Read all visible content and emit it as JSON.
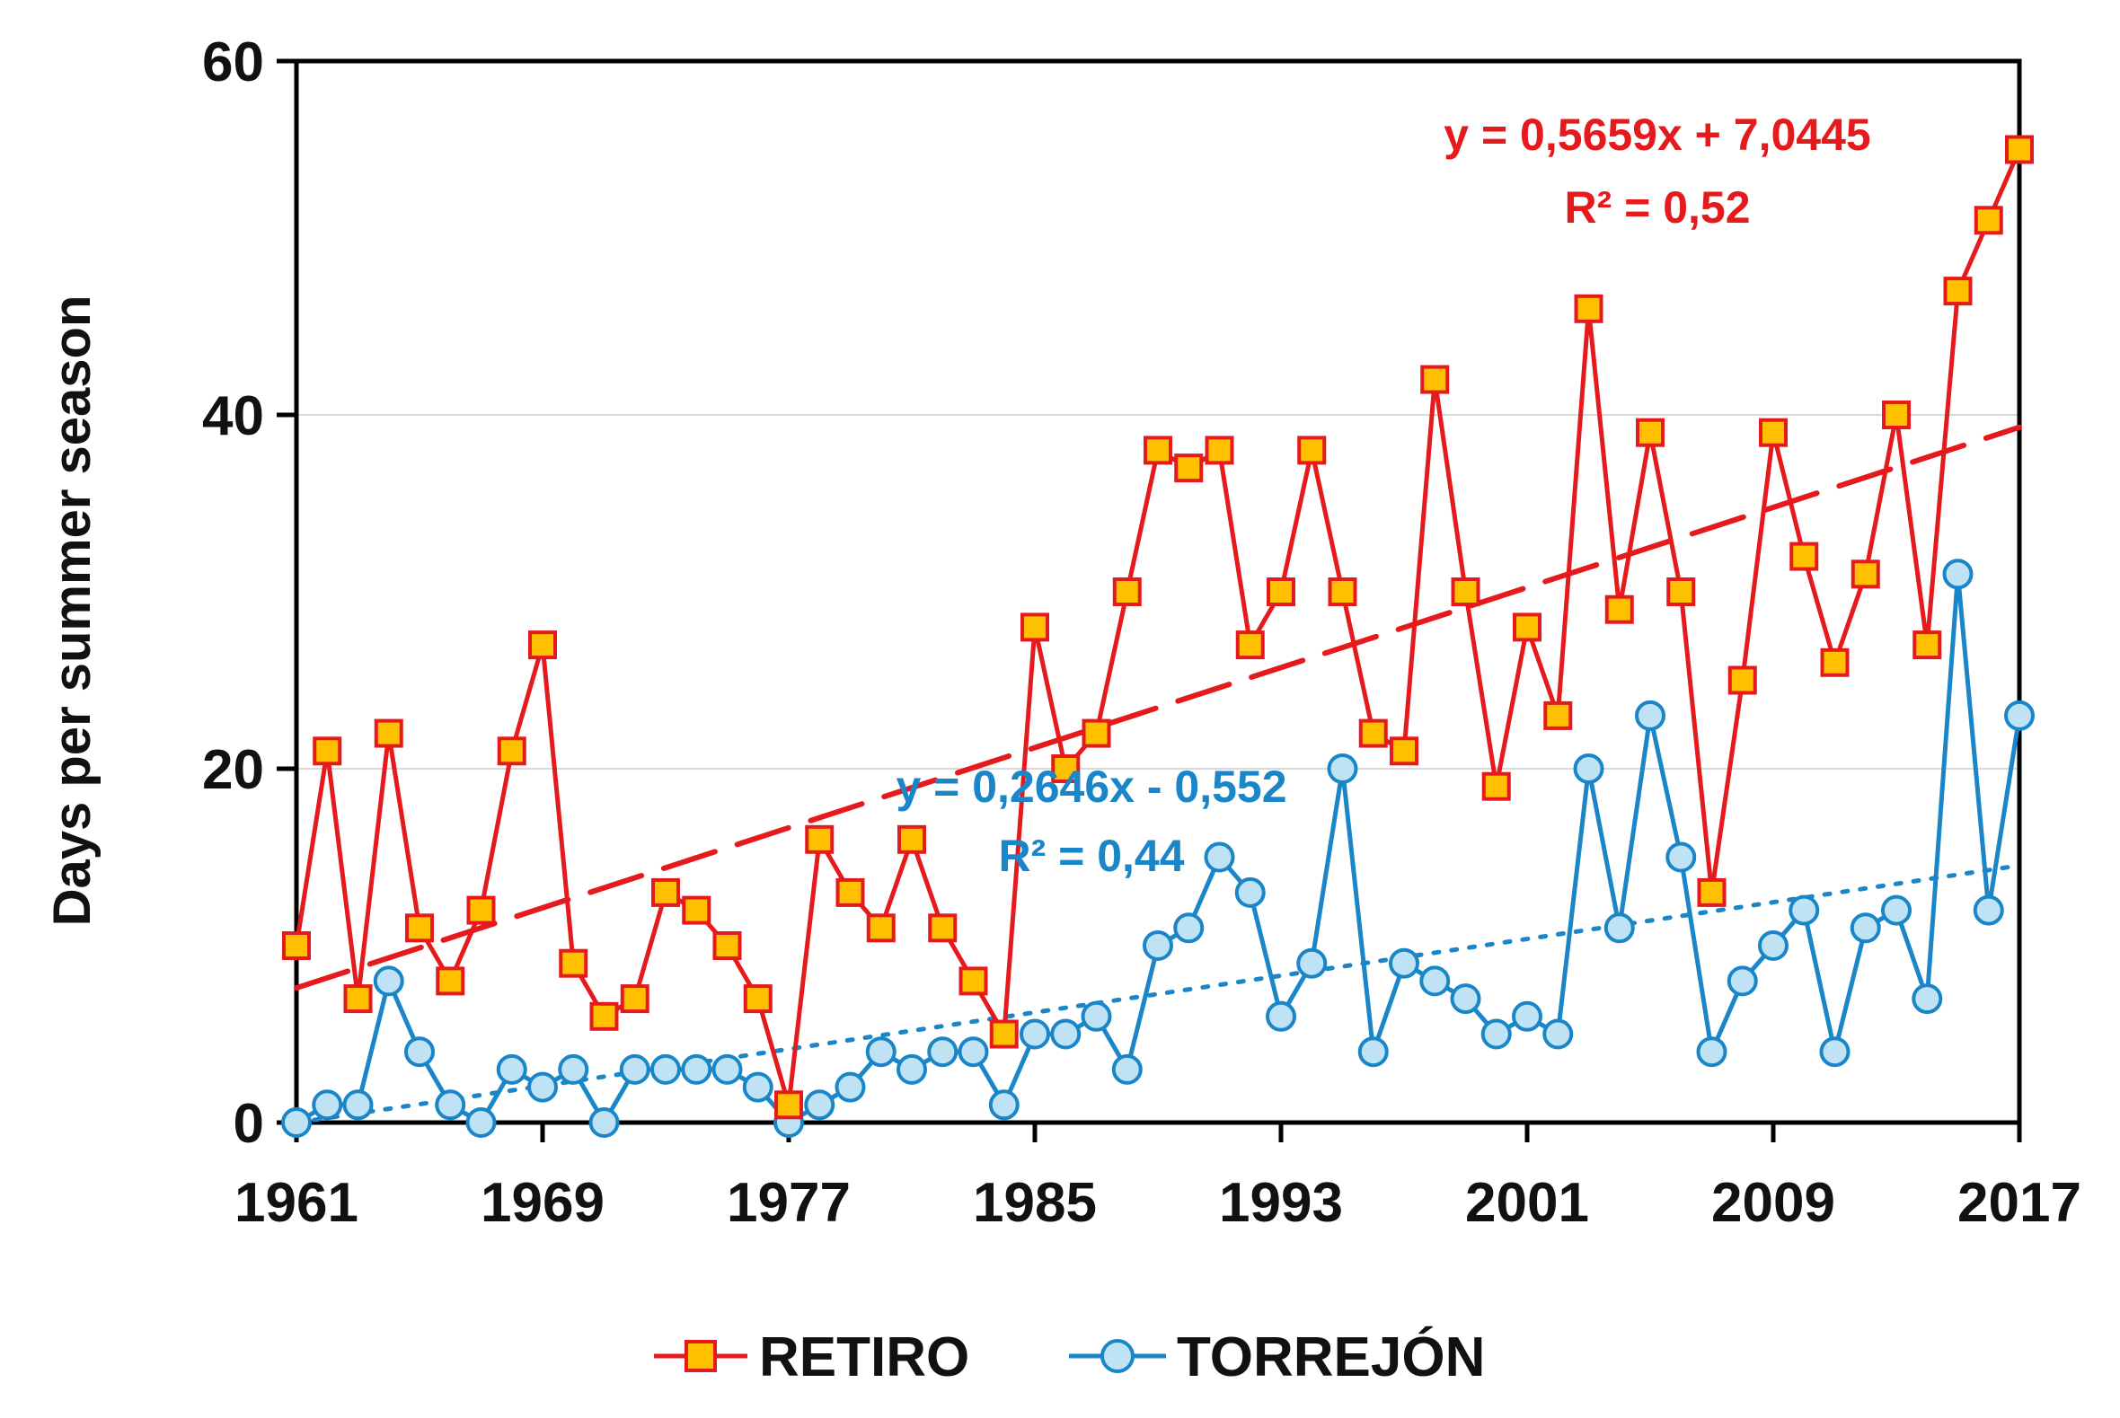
{
  "chart_data": {
    "type": "line",
    "title": "",
    "xlabel": "",
    "ylabel": "Days per summer season",
    "xlim": [
      1961,
      2017
    ],
    "ylim": [
      0,
      60
    ],
    "x_ticks": [
      "1961",
      "1969",
      "1977",
      "1985",
      "1993",
      "2001",
      "2009",
      "2017"
    ],
    "y_ticks": [
      "0",
      "20",
      "40",
      "60"
    ],
    "gridlines": "horizontal",
    "legend_position": "bottom",
    "series": [
      {
        "name": "RETIRO",
        "color": "#e41a1c",
        "marker": "square",
        "marker_fill": "#ffc000",
        "start_year": 1961,
        "values": [
          10,
          21,
          7,
          22,
          11,
          8,
          12,
          21,
          27,
          9,
          6,
          7,
          13,
          12,
          10,
          7,
          1,
          16,
          13,
          11,
          16,
          11,
          8,
          5,
          28,
          20,
          22,
          30,
          38,
          37,
          38,
          27,
          30,
          38,
          30,
          22,
          21,
          42,
          30,
          19,
          28,
          23,
          46,
          29,
          39,
          30,
          13,
          25,
          39,
          32,
          26,
          31,
          40,
          27,
          47,
          51,
          55
        ],
        "trendline": {
          "slope": 0.5659,
          "intercept": 7.0445,
          "style": "dashed"
        },
        "equation": "y = 0,5659x + 7,0445",
        "r2": "R² = 0,52"
      },
      {
        "name": "TORREJÓN",
        "color": "#1a86c8",
        "marker": "circle",
        "marker_fill": "#bfe3f5",
        "start_year": 1961,
        "values": [
          0,
          1,
          1,
          8,
          4,
          1,
          0,
          3,
          2,
          3,
          0,
          3,
          3,
          3,
          3,
          2,
          0,
          1,
          2,
          4,
          3,
          4,
          4,
          1,
          5,
          5,
          6,
          3,
          10,
          11,
          15,
          13,
          6,
          9,
          20,
          4,
          9,
          8,
          7,
          5,
          6,
          5,
          20,
          11,
          23,
          15,
          4,
          8,
          10,
          12,
          4,
          11,
          12,
          7,
          31,
          12,
          23
        ],
        "trendline": {
          "slope": 0.2646,
          "intercept": -0.552,
          "style": "dotted"
        },
        "equation": "y = 0,2646x - 0,552",
        "r2": "R² = 0,44"
      }
    ]
  }
}
